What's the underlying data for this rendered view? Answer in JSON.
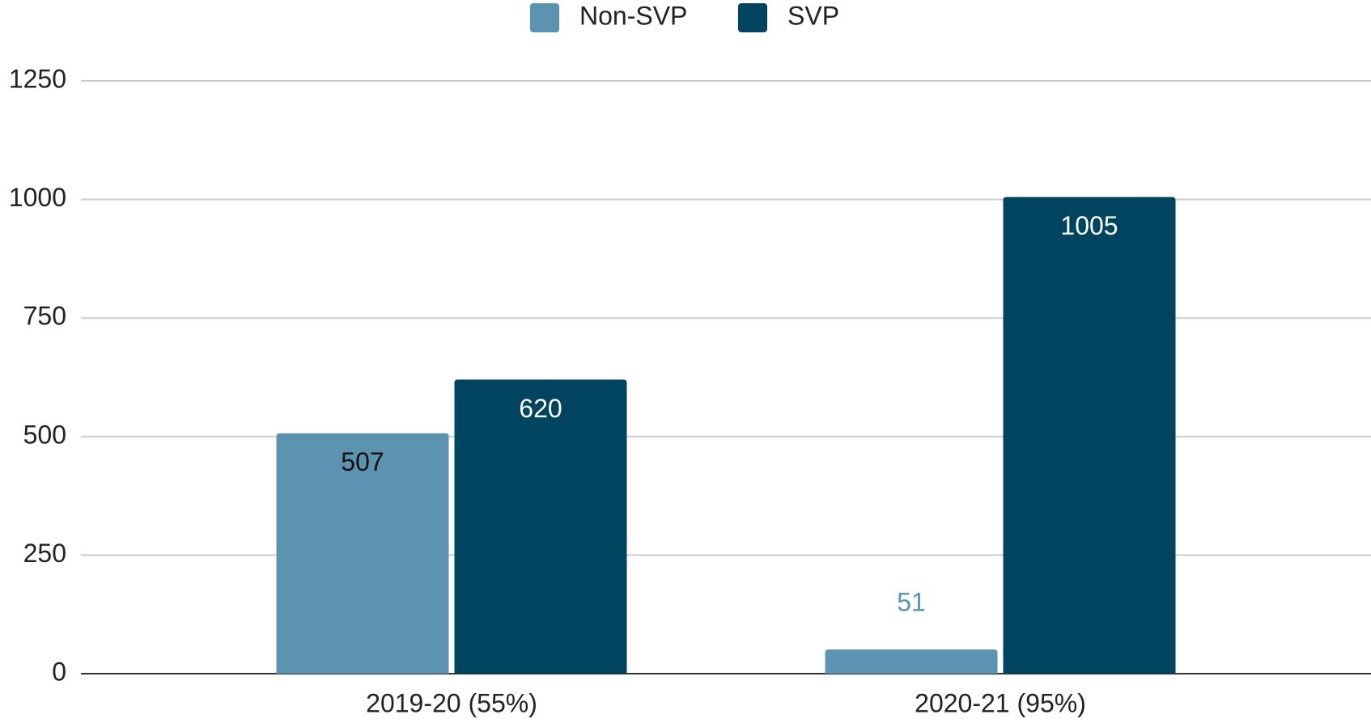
{
  "chart_data": {
    "type": "bar",
    "categories": [
      "2019-20 (55%)",
      "2020-21 (95%)"
    ],
    "series": [
      {
        "name": "Non-SVP",
        "color": "#5b93b0",
        "values": [
          507,
          51
        ]
      },
      {
        "name": "SVP",
        "color": "#00445f",
        "values": [
          620,
          1005
        ]
      }
    ],
    "ylim": [
      0,
      1250
    ],
    "yticks": [
      0,
      250,
      500,
      750,
      1000,
      1250
    ],
    "grid": true,
    "legend": "top"
  }
}
